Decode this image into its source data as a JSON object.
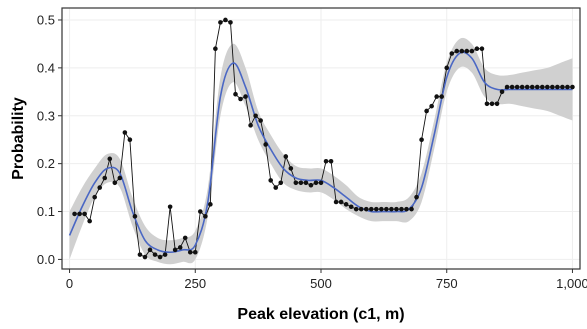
{
  "chart_data": {
    "type": "line",
    "xlabel": "Peak elevation (c1, m)",
    "ylabel": "Probability",
    "xlim": [
      -15,
      1015
    ],
    "ylim": [
      -0.02,
      0.525
    ],
    "x_ticks": [
      0,
      250,
      500,
      750,
      1000
    ],
    "x_tick_labels": [
      "0",
      "250",
      "500",
      "750",
      "1,000"
    ],
    "y_ticks": [
      0.0,
      0.1,
      0.2,
      0.3,
      0.4,
      0.5
    ],
    "y_tick_labels": [
      "0.0",
      "0.1",
      "0.2",
      "0.3",
      "0.4",
      "0.5"
    ],
    "grid": true,
    "legend": "none",
    "colors": {
      "observed": "#111111",
      "smooth": "#4a67c4",
      "band": "#d0d0d0",
      "grid": "#eeeeee",
      "panel_border": "#333333"
    },
    "series": [
      {
        "style": "points-and-line",
        "x": [
          10,
          20,
          30,
          40,
          50,
          60,
          70,
          80,
          90,
          100,
          110,
          120,
          130,
          140,
          150,
          160,
          170,
          180,
          190,
          200,
          210,
          220,
          230,
          240,
          250,
          260,
          270,
          280,
          290,
          300,
          310,
          320,
          330,
          340,
          350,
          360,
          370,
          380,
          390,
          400,
          410,
          420,
          430,
          440,
          450,
          460,
          470,
          480,
          490,
          500,
          510,
          520,
          530,
          540,
          550,
          560,
          570,
          580,
          590,
          600,
          610,
          620,
          630,
          640,
          650,
          660,
          670,
          680,
          690,
          700,
          710,
          720,
          730,
          740,
          750,
          760,
          770,
          780,
          790,
          800,
          810,
          820,
          830,
          840,
          850,
          860,
          870,
          880,
          890,
          900,
          910,
          920,
          930,
          940,
          950,
          960,
          970,
          980,
          990,
          1000
        ],
        "values": [
          0.095,
          0.095,
          0.095,
          0.08,
          0.13,
          0.15,
          0.17,
          0.21,
          0.16,
          0.17,
          0.265,
          0.25,
          0.09,
          0.01,
          0.005,
          0.02,
          0.01,
          0.005,
          0.01,
          0.11,
          0.02,
          0.025,
          0.045,
          0.015,
          0.015,
          0.1,
          0.09,
          0.115,
          0.44,
          0.495,
          0.5,
          0.495,
          0.345,
          0.335,
          0.34,
          0.28,
          0.3,
          0.29,
          0.24,
          0.165,
          0.15,
          0.16,
          0.215,
          0.19,
          0.16,
          0.16,
          0.16,
          0.155,
          0.16,
          0.16,
          0.205,
          0.205,
          0.12,
          0.12,
          0.115,
          0.11,
          0.105,
          0.105,
          0.105,
          0.105,
          0.105,
          0.105,
          0.105,
          0.105,
          0.105,
          0.105,
          0.105,
          0.105,
          0.13,
          0.25,
          0.31,
          0.32,
          0.34,
          0.34,
          0.4,
          0.43,
          0.435,
          0.435,
          0.435,
          0.435,
          0.44,
          0.44,
          0.325,
          0.325,
          0.325,
          0.35,
          0.36,
          0.36,
          0.36,
          0.36,
          0.36,
          0.36,
          0.36,
          0.36,
          0.36,
          0.36,
          0.36,
          0.36,
          0.36,
          0.36
        ]
      },
      {
        "style": "smooth-line-with-band",
        "x": [
          0,
          25,
          50,
          75,
          100,
          125,
          150,
          175,
          200,
          225,
          250,
          275,
          300,
          325,
          350,
          375,
          400,
          425,
          450,
          475,
          500,
          525,
          550,
          575,
          600,
          625,
          650,
          675,
          700,
          725,
          750,
          775,
          800,
          825,
          850,
          875,
          900,
          925,
          950,
          975,
          1000
        ],
        "values": [
          0.05,
          0.11,
          0.16,
          0.19,
          0.18,
          0.1,
          0.04,
          0.02,
          0.015,
          0.02,
          0.03,
          0.12,
          0.34,
          0.41,
          0.36,
          0.28,
          0.23,
          0.19,
          0.17,
          0.165,
          0.165,
          0.15,
          0.13,
          0.11,
          0.1,
          0.1,
          0.1,
          0.105,
          0.15,
          0.26,
          0.38,
          0.43,
          0.42,
          0.37,
          0.355,
          0.355,
          0.355,
          0.355,
          0.355,
          0.355,
          0.355
        ],
        "lower": [
          0.0,
          0.07,
          0.13,
          0.16,
          0.15,
          0.07,
          0.01,
          -0.005,
          -0.01,
          -0.005,
          0.0,
          0.09,
          0.3,
          0.37,
          0.32,
          0.25,
          0.2,
          0.16,
          0.145,
          0.14,
          0.14,
          0.125,
          0.105,
          0.09,
          0.08,
          0.08,
          0.08,
          0.08,
          0.12,
          0.23,
          0.35,
          0.4,
          0.39,
          0.34,
          0.325,
          0.325,
          0.32,
          0.315,
          0.31,
          0.3,
          0.29
        ],
        "upper": [
          0.1,
          0.15,
          0.19,
          0.22,
          0.21,
          0.13,
          0.07,
          0.045,
          0.04,
          0.045,
          0.06,
          0.15,
          0.38,
          0.45,
          0.4,
          0.31,
          0.26,
          0.22,
          0.195,
          0.19,
          0.19,
          0.175,
          0.155,
          0.13,
          0.12,
          0.12,
          0.12,
          0.13,
          0.18,
          0.29,
          0.41,
          0.46,
          0.45,
          0.4,
          0.385,
          0.385,
          0.39,
          0.395,
          0.4,
          0.41,
          0.42
        ]
      }
    ]
  }
}
